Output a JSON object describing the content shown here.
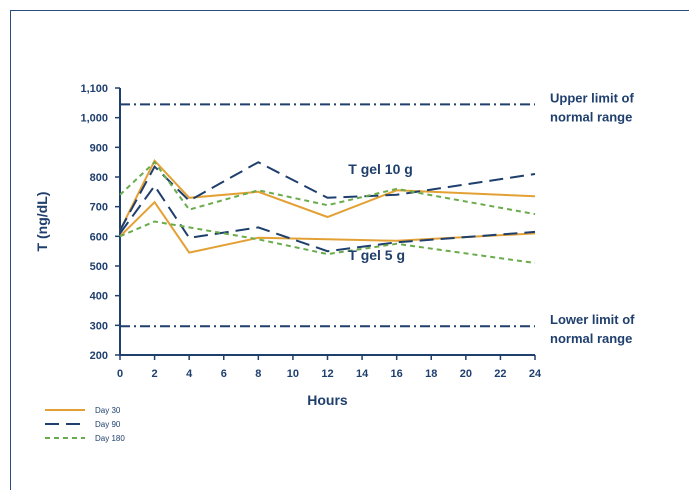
{
  "caption": "",
  "colors": {
    "axis": "#1f3f6d",
    "day30": "#e3a135",
    "day90": "#1f3f6d",
    "day180": "#6aab4b",
    "limit": "#1f3f6d"
  },
  "chart_data": {
    "type": "line",
    "xlabel": "Hours",
    "ylabel": "T (ng/dL)",
    "x_ticks": [
      "0",
      "2",
      "4",
      "6",
      "8",
      "10",
      "12",
      "14",
      "16",
      "18",
      "20",
      "22",
      "24"
    ],
    "y_ticks": [
      "200",
      "300",
      "400",
      "500",
      "600",
      "700",
      "800",
      "900",
      "1,000",
      "1,100"
    ],
    "xlim": [
      0,
      24
    ],
    "ylim": [
      200,
      1100
    ],
    "grid": false,
    "legend_position": "bottom-left",
    "reference_lines": [
      {
        "label_line1": "Upper limit of",
        "label_line2": "normal range",
        "y": 1045
      },
      {
        "label_line1": "Lower limit of",
        "label_line2": "normal range",
        "y": 297
      }
    ],
    "annotations": [
      {
        "text": "T gel 10 g",
        "x": 13.2,
        "y": 810
      },
      {
        "text": "T gel 5 g",
        "x": 13.2,
        "y": 520
      }
    ],
    "series": [
      {
        "name": "Day 30",
        "style": "solid",
        "group": "T gel 10 g",
        "x": [
          0,
          2,
          4,
          8,
          12,
          16,
          24
        ],
        "y": [
          620,
          855,
          730,
          750,
          665,
          755,
          735
        ]
      },
      {
        "name": "Day 30",
        "style": "solid",
        "group": "T gel 5 g",
        "x": [
          0,
          2,
          4,
          8,
          12,
          16,
          24
        ],
        "y": [
          600,
          715,
          545,
          595,
          590,
          585,
          610
        ]
      },
      {
        "name": "Day 90",
        "style": "longdash",
        "group": "T gel 10 g",
        "x": [
          0,
          2,
          4,
          8,
          12,
          16,
          24
        ],
        "y": [
          620,
          835,
          720,
          850,
          730,
          740,
          810
        ]
      },
      {
        "name": "Day 90",
        "style": "longdash",
        "group": "T gel 5 g",
        "x": [
          0,
          2,
          4,
          8,
          12,
          16,
          24
        ],
        "y": [
          610,
          770,
          595,
          630,
          550,
          580,
          615
        ]
      },
      {
        "name": "Day 180",
        "style": "shortdash",
        "group": "T gel 10 g",
        "x": [
          0,
          2,
          4,
          8,
          12,
          16,
          24
        ],
        "y": [
          740,
          850,
          690,
          755,
          705,
          760,
          675
        ]
      },
      {
        "name": "Day 180",
        "style": "shortdash",
        "group": "T gel 5 g",
        "x": [
          0,
          2,
          4,
          8,
          12,
          16,
          24
        ],
        "y": [
          600,
          650,
          630,
          590,
          540,
          575,
          510
        ]
      }
    ],
    "legend": [
      {
        "label": "Day 30",
        "style": "solid"
      },
      {
        "label": "Day 90",
        "style": "longdash"
      },
      {
        "label": "Day 180",
        "style": "shortdash"
      }
    ]
  }
}
